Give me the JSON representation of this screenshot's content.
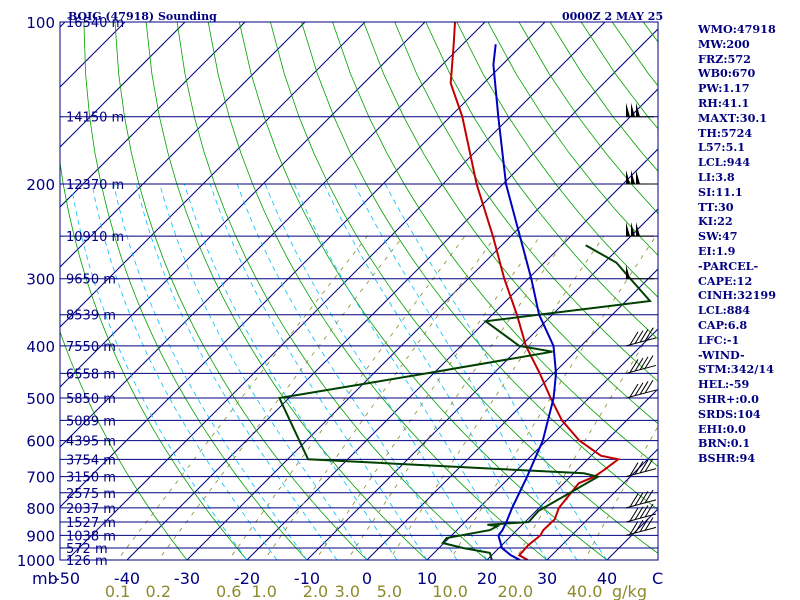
{
  "header": {
    "station": "BOIG (47918) Sounding",
    "time": "0000Z  2 MAY 25"
  },
  "axis": {
    "p_unit": "mb",
    "mixing_unit": "g/kg",
    "c_label": "C"
  },
  "indices": [
    "WMO:47918",
    "MW:200",
    "FRZ:572",
    "WB0:670",
    "PW:1.17",
    "RH:41.1",
    "MAXT:30.1",
    "TH:5724",
    "L57:5.1",
    "LCL:944",
    "LI:3.8",
    "SI:11.1",
    "TT:30",
    "KI:22",
    "SW:47",
    "EI:1.9",
    "-PARCEL-",
    "CAPE:12",
    "CINH:32199",
    "LCL:884",
    "CAP:6.8",
    "LFC:-1",
    "-WIND-",
    "STM:342/14",
    "HEL:-59",
    "SHR+:0.0",
    "SRDS:104",
    "EHI:0.0",
    "BRN:0.1",
    "BSHR:94"
  ],
  "colors": {
    "frame": "#000080",
    "isobar": "#000080",
    "isotherm": "#000080",
    "dry_adiabat": "#00a000",
    "moist_adiabat": "#00bfff",
    "mixing_ratio": "#8b8b2b",
    "temperature": "#c00000",
    "dewpoint": "#004000",
    "parcel": "#0000c0"
  },
  "chart_data": {
    "type": "line",
    "title": "BOIG (47918) Sounding",
    "subtitle": "0000Z  2 MAY 25",
    "xlabel": "",
    "ylabel": "mb",
    "x_scale": "skew-T (temperature, C)",
    "y_scale": "log pressure",
    "ylim": [
      1000,
      100
    ],
    "pressure_ticks": [
      100,
      200,
      300,
      400,
      500,
      600,
      700,
      800,
      900,
      1000
    ],
    "temperature_ticks": [
      -50,
      -40,
      -30,
      -20,
      -10,
      0,
      10,
      20,
      30,
      40
    ],
    "mixing_ratio_ticks": [
      "0.1",
      "0.2",
      "0.6",
      "1.0",
      "2.0",
      "3.0",
      "5.0",
      "10.0",
      "20.0",
      "40.0"
    ],
    "height_levels": [
      {
        "p": 100,
        "label": "16540 m"
      },
      {
        "p": 150,
        "label": "14150 m"
      },
      {
        "p": 200,
        "label": "12370 m"
      },
      {
        "p": 250,
        "label": "10910 m"
      },
      {
        "p": 300,
        "label": "9650 m"
      },
      {
        "p": 350,
        "label": "8539 m"
      },
      {
        "p": 400,
        "label": "7550 m"
      },
      {
        "p": 450,
        "label": "6558 m"
      },
      {
        "p": 500,
        "label": "5850 m"
      },
      {
        "p": 550,
        "label": "5089 m"
      },
      {
        "p": 600,
        "label": "4395 m"
      },
      {
        "p": 650,
        "label": "3754 m"
      },
      {
        "p": 700,
        "label": "3150 m"
      },
      {
        "p": 750,
        "label": "2575 m"
      },
      {
        "p": 800,
        "label": "2037 m"
      },
      {
        "p": 850,
        "label": "1527 m"
      },
      {
        "p": 900,
        "label": "1038 m"
      },
      {
        "p": 950,
        "label": "572 m"
      },
      {
        "p": 1000,
        "label": "126 m"
      }
    ],
    "series": [
      {
        "name": "Temperature",
        "unit": "C",
        "points": [
          [
            1000,
            26.8
          ],
          [
            980,
            24.6
          ],
          [
            940,
            24.4
          ],
          [
            900,
            24.8
          ],
          [
            880,
            24.4
          ],
          [
            840,
            24.5
          ],
          [
            800,
            23.3
          ],
          [
            720,
            22.5
          ],
          [
            700,
            24.0
          ],
          [
            680,
            24.5
          ],
          [
            650,
            25.1
          ],
          [
            640,
            21.6
          ],
          [
            600,
            15.5
          ],
          [
            550,
            9.2
          ],
          [
            500,
            3.6
          ],
          [
            450,
            -2.3
          ],
          [
            400,
            -9.2
          ],
          [
            350,
            -15.9
          ],
          [
            300,
            -24.0
          ],
          [
            250,
            -33.0
          ],
          [
            200,
            -44.4
          ],
          [
            150,
            -58.0
          ],
          [
            130,
            -65.5
          ],
          [
            110,
            -71.5
          ],
          [
            100,
            -75.0
          ]
        ]
      },
      {
        "name": "Dewpoint",
        "unit": "C",
        "points": [
          [
            1000,
            20.8
          ],
          [
            970,
            19.3
          ],
          [
            950,
            14.0
          ],
          [
            930,
            9.8
          ],
          [
            910,
            9.6
          ],
          [
            880,
            15.5
          ],
          [
            865,
            16.1
          ],
          [
            860,
            14.2
          ],
          [
            850,
            20.6
          ],
          [
            810,
            20.4
          ],
          [
            700,
            24.6
          ],
          [
            690,
            21.7
          ],
          [
            650,
            -26.6
          ],
          [
            500,
            -41.6
          ],
          [
            450,
            -21.2
          ],
          [
            410,
            -3.8
          ],
          [
            400,
            -10.3
          ],
          [
            360,
            -20.0
          ],
          [
            330,
            4.0
          ],
          [
            300,
            -3.0
          ],
          [
            280,
            -8.0
          ],
          [
            260,
            -16.0
          ]
        ]
      },
      {
        "name": "Parcel",
        "unit": "C",
        "points": [
          [
            1000,
            25.5
          ],
          [
            980,
            23.2
          ],
          [
            950,
            20.5
          ],
          [
            900,
            17.8
          ],
          [
            880,
            17.6
          ],
          [
            850,
            16.9
          ],
          [
            800,
            15.5
          ],
          [
            700,
            12.8
          ],
          [
            600,
            9.4
          ],
          [
            500,
            4.1
          ],
          [
            450,
            0.4
          ],
          [
            400,
            -4.6
          ],
          [
            350,
            -12.2
          ],
          [
            300,
            -19.5
          ],
          [
            250,
            -28.5
          ],
          [
            200,
            -39.5
          ],
          [
            150,
            -52.0
          ],
          [
            120,
            -61.5
          ],
          [
            110,
            -64.5
          ]
        ]
      }
    ],
    "wind_barbs": [
      {
        "p": 150,
        "glyph": "pennants"
      },
      {
        "p": 200,
        "glyph": "pennants"
      },
      {
        "p": 250,
        "glyph": "pennants"
      },
      {
        "p": 300,
        "glyph": "pennant"
      },
      {
        "p": 400,
        "glyph": "barbs"
      },
      {
        "p": 450,
        "glyph": "barbs"
      },
      {
        "p": 500,
        "glyph": "barbs"
      },
      {
        "p": 700,
        "glyph": "barbs"
      },
      {
        "p": 800,
        "glyph": "barbs"
      },
      {
        "p": 850,
        "glyph": "barbs"
      },
      {
        "p": 900,
        "glyph": "barbs"
      }
    ]
  }
}
